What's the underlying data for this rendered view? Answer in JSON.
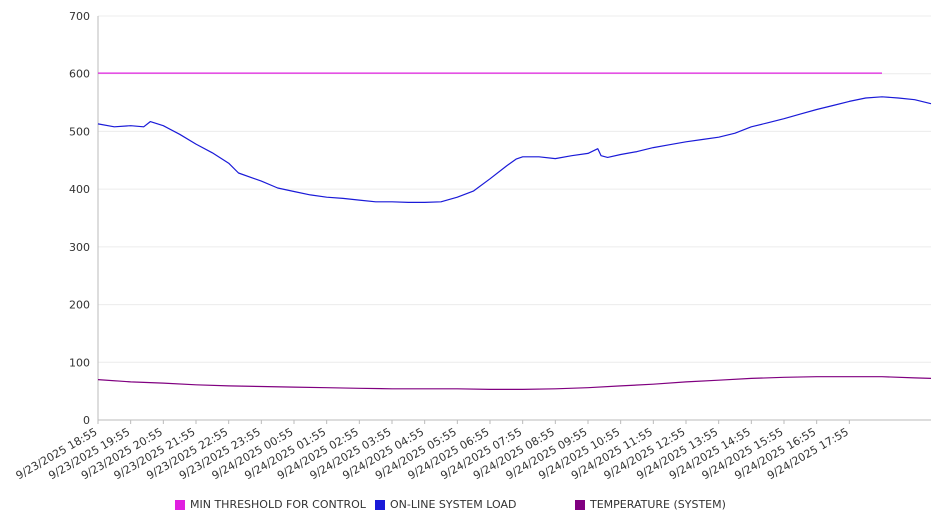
{
  "chart_data": {
    "type": "line",
    "x_tick_labels": [
      "9/23/2025 18:55",
      "9/23/2025 19:55",
      "9/23/2025 20:55",
      "9/23/2025 21:55",
      "9/23/2025 22:55",
      "9/23/2025 23:55",
      "9/24/2025 00:55",
      "9/24/2025 01:55",
      "9/24/2025 02:55",
      "9/24/2025 03:55",
      "9/24/2025 04:55",
      "9/24/2025 05:55",
      "9/24/2025 06:55",
      "9/24/2025 07:55",
      "9/24/2025 08:55",
      "9/24/2025 09:55",
      "9/24/2025 10:55",
      "9/24/2025 11:55",
      "9/24/2025 12:55",
      "9/24/2025 13:55",
      "9/24/2025 14:55",
      "9/24/2025 15:55",
      "9/24/2025 16:55",
      "9/24/2025 17:55"
    ],
    "y_ticks": [
      0,
      100,
      200,
      300,
      400,
      500,
      600,
      700
    ],
    "ylim": [
      0,
      700
    ],
    "grid": true,
    "legend_position": "bottom",
    "x_hours_span": 24,
    "series": [
      {
        "name": "MIN THRESHOLD FOR CONTROL",
        "color": "#e020e0",
        "points": [
          [
            0,
            601
          ],
          [
            24,
            601
          ]
        ]
      },
      {
        "name": "ON-LINE SYSTEM LOAD",
        "color": "#1a1ad8",
        "points": [
          [
            0,
            513
          ],
          [
            0.5,
            508
          ],
          [
            1,
            510
          ],
          [
            1.4,
            508
          ],
          [
            1.6,
            517
          ],
          [
            2,
            510
          ],
          [
            2.5,
            495
          ],
          [
            3,
            478
          ],
          [
            3.5,
            463
          ],
          [
            4,
            445
          ],
          [
            4.3,
            428
          ],
          [
            5,
            414
          ],
          [
            5.5,
            402
          ],
          [
            6,
            396
          ],
          [
            6.5,
            390
          ],
          [
            7,
            386
          ],
          [
            7.5,
            384
          ],
          [
            8,
            381
          ],
          [
            8.5,
            378
          ],
          [
            9,
            378
          ],
          [
            9.5,
            377
          ],
          [
            10,
            377
          ],
          [
            10.5,
            378
          ],
          [
            11,
            386
          ],
          [
            11.5,
            397
          ],
          [
            12,
            418
          ],
          [
            12.5,
            440
          ],
          [
            12.8,
            452
          ],
          [
            13,
            456
          ],
          [
            13.5,
            456
          ],
          [
            14,
            453
          ],
          [
            14.5,
            458
          ],
          [
            15,
            462
          ],
          [
            15.3,
            470
          ],
          [
            15.4,
            458
          ],
          [
            15.6,
            455
          ],
          [
            16,
            460
          ],
          [
            16.5,
            465
          ],
          [
            17,
            472
          ],
          [
            17.5,
            477
          ],
          [
            18,
            482
          ],
          [
            18.5,
            486
          ],
          [
            19,
            490
          ],
          [
            19.5,
            497
          ],
          [
            20,
            508
          ],
          [
            20.5,
            515
          ],
          [
            21,
            522
          ],
          [
            21.5,
            530
          ],
          [
            22,
            538
          ],
          [
            22.5,
            545
          ],
          [
            23,
            552
          ],
          [
            23.5,
            558
          ],
          [
            24,
            560
          ],
          [
            24.5,
            558
          ],
          [
            25,
            555
          ],
          [
            25.5,
            548
          ]
        ]
      },
      {
        "name": "TEMPERATURE (SYSTEM)",
        "color": "#800080",
        "points": [
          [
            0,
            70
          ],
          [
            1,
            66
          ],
          [
            2,
            64
          ],
          [
            3,
            61
          ],
          [
            4,
            59
          ],
          [
            5,
            58
          ],
          [
            6,
            57
          ],
          [
            7,
            56
          ],
          [
            8,
            55
          ],
          [
            9,
            54
          ],
          [
            10,
            54
          ],
          [
            11,
            54
          ],
          [
            12,
            53
          ],
          [
            13,
            53
          ],
          [
            14,
            54
          ],
          [
            15,
            56
          ],
          [
            16,
            59
          ],
          [
            17,
            62
          ],
          [
            18,
            66
          ],
          [
            19,
            69
          ],
          [
            20,
            72
          ],
          [
            21,
            74
          ],
          [
            22,
            75
          ],
          [
            23,
            75
          ],
          [
            24,
            75
          ],
          [
            25,
            73
          ],
          [
            25.5,
            72
          ]
        ]
      }
    ]
  }
}
